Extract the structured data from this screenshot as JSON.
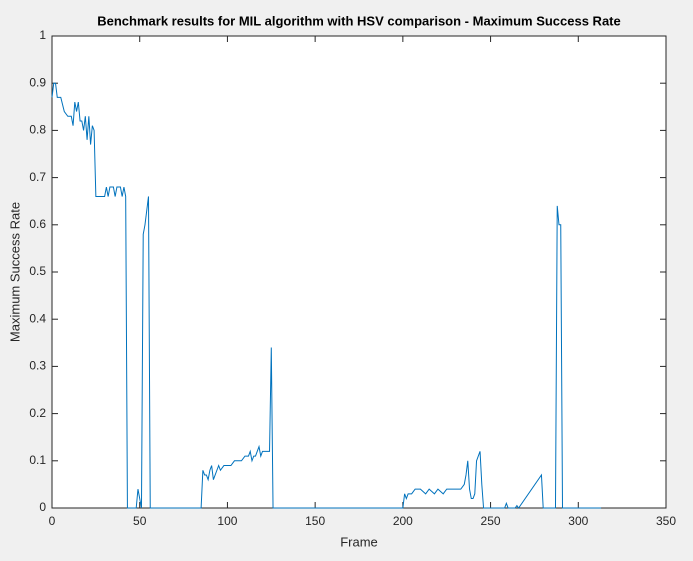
{
  "chart_data": {
    "type": "line",
    "title": "Benchmark results for MIL algorithm with HSV comparison - Maximum Success Rate",
    "x_label": "Frame",
    "y_label": "Maximum Success Rate",
    "color": "#0072bd",
    "x": [
      0,
      1,
      2,
      3,
      5,
      7,
      9,
      11,
      12,
      13,
      14,
      15,
      16,
      17,
      18,
      19,
      20,
      21,
      22,
      23,
      24,
      25,
      27,
      29,
      30,
      31,
      32,
      33,
      35,
      36,
      37,
      39,
      40,
      41,
      42,
      43,
      48,
      49,
      50,
      51,
      52,
      53,
      55,
      56,
      85,
      86,
      87,
      88,
      89,
      90,
      91,
      92,
      93,
      94,
      95,
      96,
      98,
      100,
      102,
      104,
      106,
      108,
      110,
      112,
      113,
      114,
      115,
      116,
      117,
      118,
      119,
      120,
      122,
      124,
      125,
      126,
      200,
      201,
      202,
      203,
      205,
      207,
      210,
      213,
      215,
      218,
      220,
      223,
      225,
      228,
      230,
      233,
      235,
      236,
      237,
      238,
      239,
      240,
      241,
      242,
      244,
      245,
      246,
      247,
      258,
      259,
      260,
      264,
      265,
      266,
      279,
      280,
      281,
      287,
      288,
      289,
      290,
      291,
      292,
      313
    ],
    "values": [
      0.87,
      0.9,
      0.9,
      0.87,
      0.87,
      0.84,
      0.83,
      0.83,
      0.81,
      0.86,
      0.84,
      0.86,
      0.82,
      0.82,
      0.8,
      0.83,
      0.78,
      0.83,
      0.77,
      0.81,
      0.8,
      0.66,
      0.66,
      0.66,
      0.66,
      0.68,
      0.66,
      0.68,
      0.68,
      0.66,
      0.68,
      0.68,
      0.66,
      0.68,
      0.66,
      0,
      0,
      0.04,
      0.02,
      0,
      0.58,
      0.6,
      0.66,
      0,
      0,
      0.08,
      0.07,
      0.07,
      0.06,
      0.08,
      0.09,
      0.06,
      0.07,
      0.08,
      0.09,
      0.08,
      0.09,
      0.09,
      0.09,
      0.1,
      0.1,
      0.1,
      0.11,
      0.11,
      0.12,
      0.1,
      0.11,
      0.11,
      0.12,
      0.13,
      0.11,
      0.12,
      0.12,
      0.12,
      0.34,
      0,
      0,
      0.03,
      0.02,
      0.03,
      0.03,
      0.04,
      0.04,
      0.03,
      0.04,
      0.03,
      0.04,
      0.03,
      0.04,
      0.04,
      0.04,
      0.04,
      0.05,
      0.07,
      0.1,
      0.04,
      0.02,
      0.02,
      0.03,
      0.1,
      0.12,
      0.05,
      0,
      0,
      0,
      0.01,
      0,
      0,
      0.005,
      0,
      0.07,
      0,
      0,
      0,
      0.64,
      0.6,
      0.6,
      0,
      0,
      0
    ],
    "xlim": [
      0,
      350
    ],
    "ylim": [
      0,
      1
    ],
    "xticks": [
      0,
      50,
      100,
      150,
      200,
      250,
      300,
      350
    ],
    "yticks": [
      0,
      0.1,
      0.2,
      0.3,
      0.4,
      0.5,
      0.6,
      0.7,
      0.8,
      0.9,
      1
    ]
  }
}
